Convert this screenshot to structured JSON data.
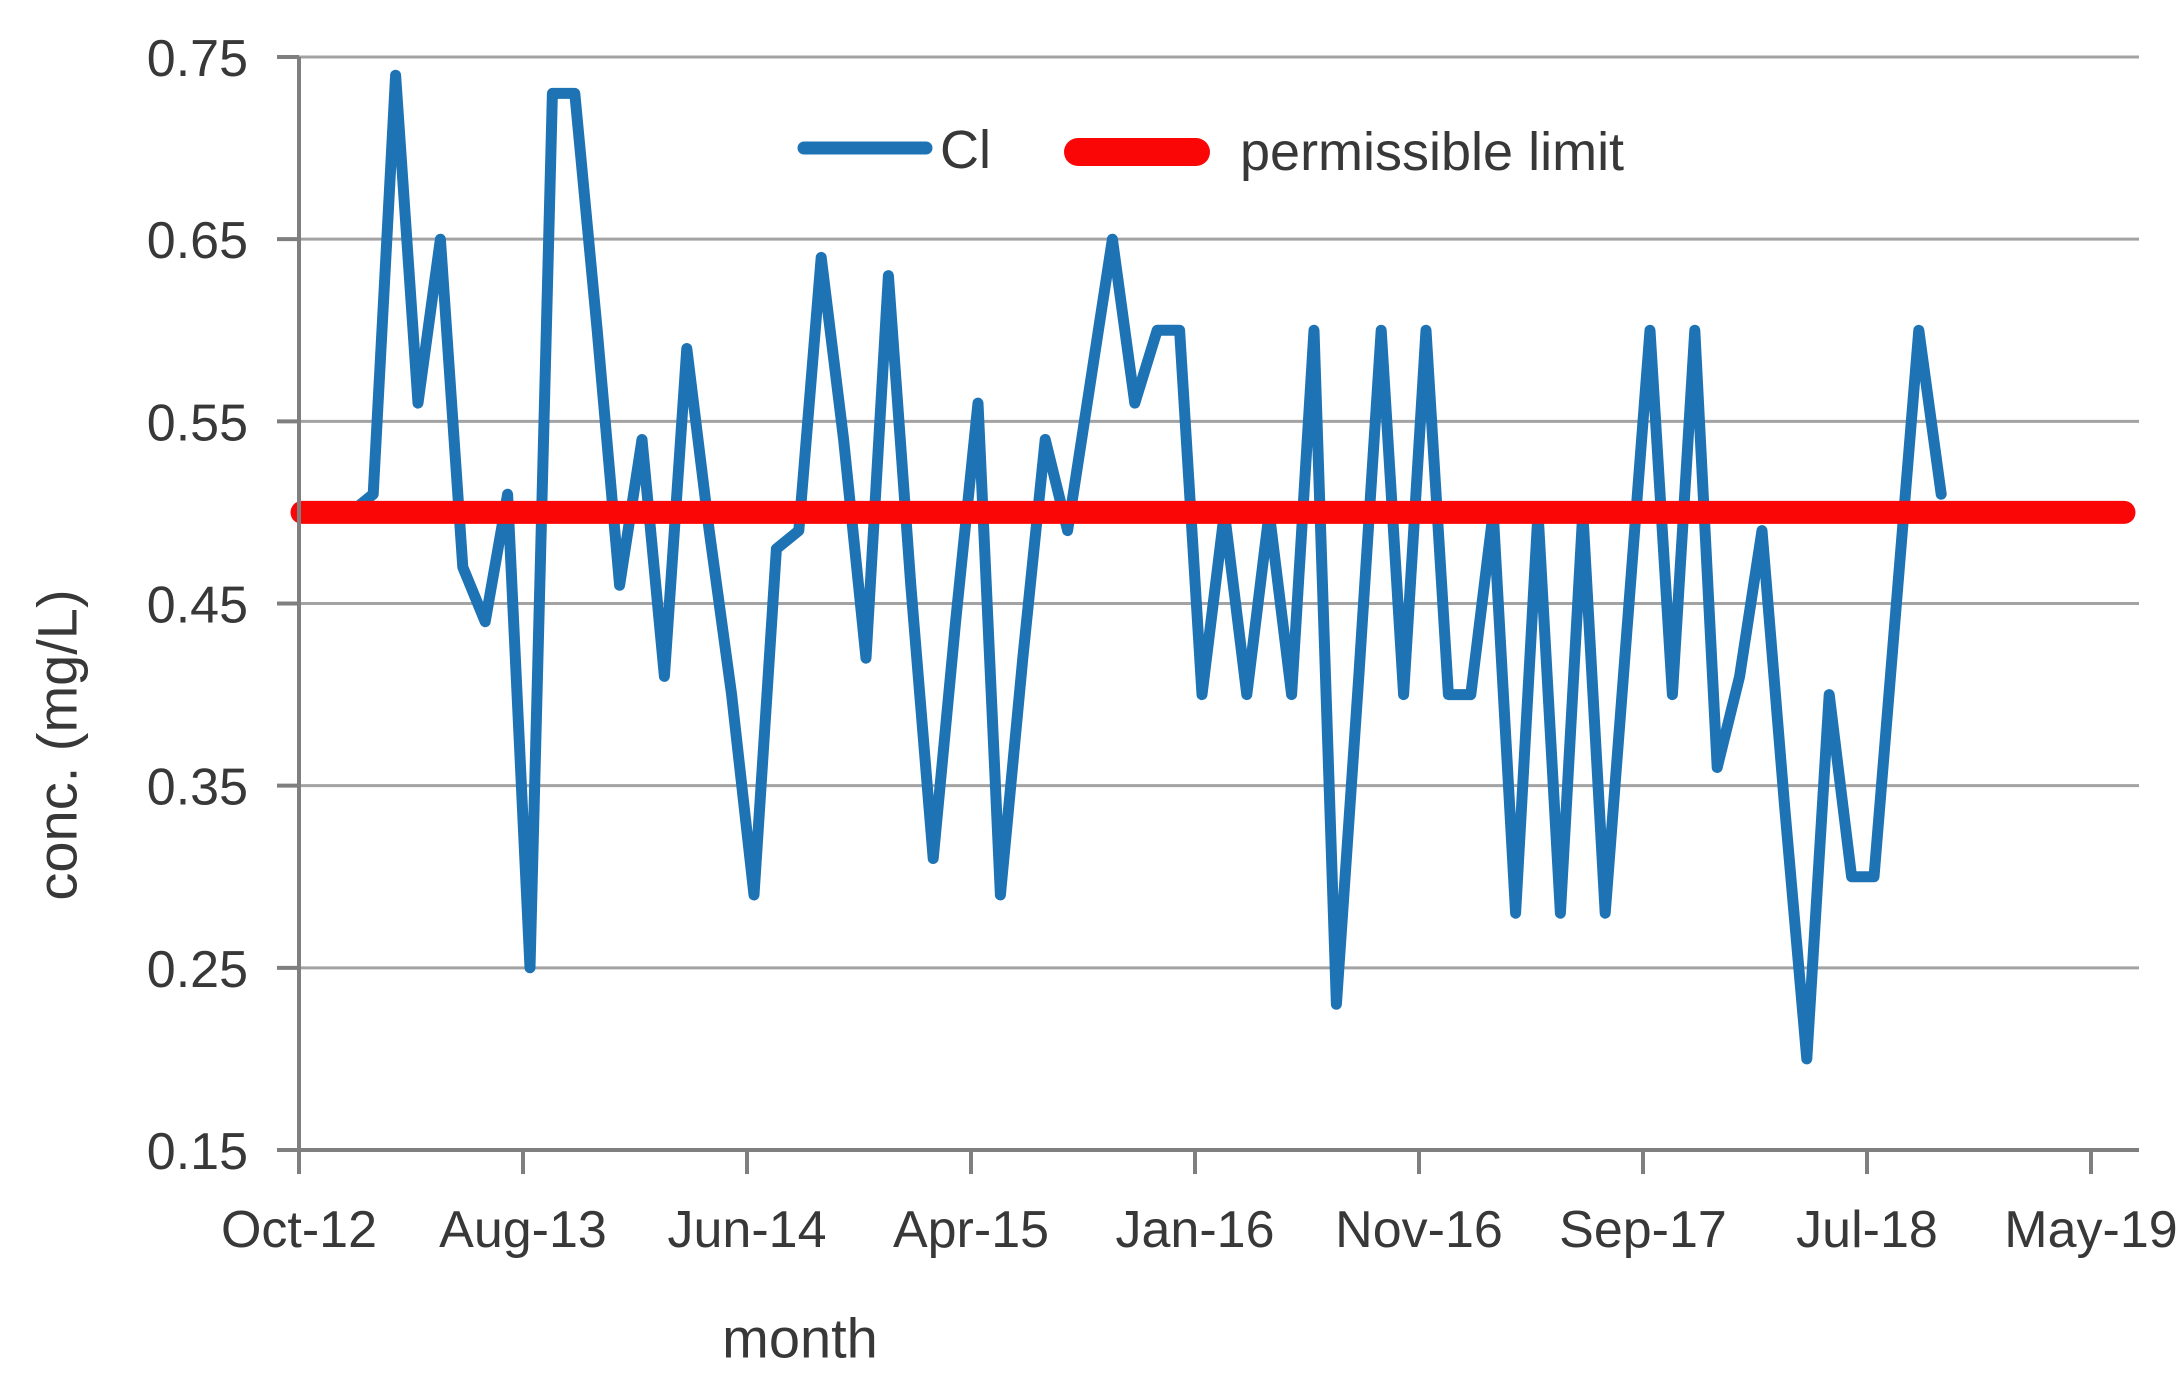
{
  "chart_data": {
    "type": "line",
    "title": "",
    "xlabel": "month",
    "ylabel": "conc. (mg/L)",
    "x_tick_labels": [
      "Oct-12",
      "Aug-13",
      "Jun-14",
      "Apr-15",
      "Jan-16",
      "Nov-16",
      "Sep-17",
      "Jul-18",
      "May-19"
    ],
    "y_tick_labels": [
      "0.75",
      "0.65",
      "0.55",
      "0.45",
      "0.35",
      "0.25",
      "0.15"
    ],
    "ylim": [
      0.15,
      0.75
    ],
    "gridlines": true,
    "legend_position": "top-center",
    "series": [
      {
        "name": "Cl",
        "color": "#1e73b5",
        "unit": "mg/L",
        "x_start": "Oct-12",
        "x_interval": "monthly",
        "values": [
          0.5,
          0.5,
          0.5,
          0.51,
          0.74,
          0.56,
          0.65,
          0.47,
          0.44,
          0.51,
          0.25,
          0.73,
          0.73,
          0.6,
          0.46,
          0.54,
          0.41,
          0.59,
          0.49,
          0.4,
          0.29,
          0.48,
          0.49,
          0.64,
          0.54,
          0.42,
          0.63,
          0.46,
          0.31,
          0.44,
          0.56,
          0.29,
          0.42,
          0.54,
          0.49,
          0.57,
          0.65,
          0.56,
          0.6,
          0.6,
          0.4,
          0.5,
          0.4,
          0.5,
          0.4,
          0.6,
          0.23,
          0.41,
          0.6,
          0.4,
          0.6,
          0.4,
          0.4,
          0.5,
          0.28,
          0.5,
          0.28,
          0.5,
          0.28,
          0.44,
          0.6,
          0.4,
          0.6,
          0.36,
          0.41,
          0.49,
          0.34,
          0.2,
          0.4,
          0.3,
          0.3,
          0.45,
          0.6,
          0.51
        ]
      },
      {
        "name": "permissible limit",
        "color": "#fb0606",
        "constant_value": 0.5
      }
    ],
    "legend": {
      "cl_label": "Cl",
      "limit_label": "permissible limit"
    }
  },
  "colors": {
    "series_line": "#1e73b5",
    "limit_line": "#fb0606",
    "gridline": "#a3a3a3",
    "axis": "#7f7f7f",
    "text": "#383838",
    "background": "#ffffff"
  }
}
